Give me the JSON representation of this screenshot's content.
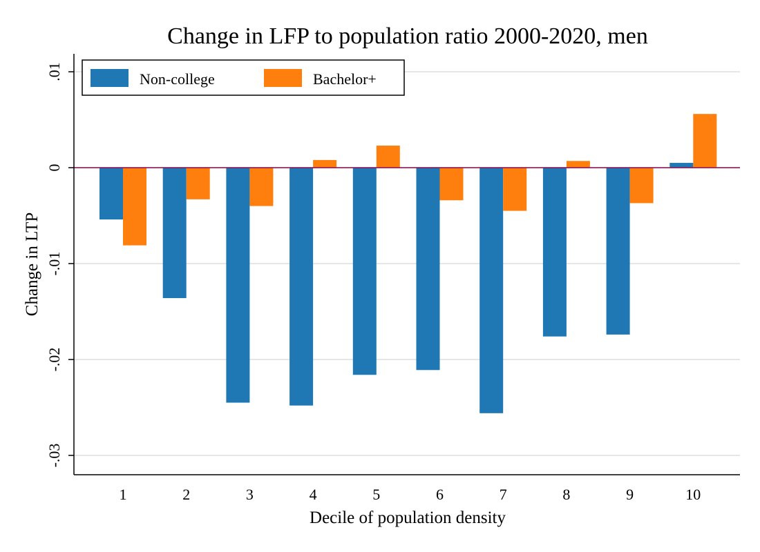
{
  "chart_data": {
    "type": "bar",
    "title": "Change in LFP to population ratio 2000-2020, men",
    "xlabel": "Decile of population density",
    "ylabel": "Change in LTP",
    "categories": [
      "1",
      "2",
      "3",
      "4",
      "5",
      "6",
      "7",
      "8",
      "9",
      "10"
    ],
    "series": [
      {
        "name": "Non-college",
        "color": "#1f77b4",
        "values": [
          -0.0054,
          -0.0136,
          -0.0245,
          -0.0248,
          -0.0216,
          -0.0211,
          -0.0256,
          -0.0176,
          -0.0174,
          0.0005
        ]
      },
      {
        "name": "Bachelor+",
        "color": "#ff7f0e",
        "values": [
          -0.0081,
          -0.0033,
          -0.004,
          0.0008,
          0.0023,
          -0.0034,
          -0.0045,
          0.0007,
          -0.0037,
          0.0056
        ]
      }
    ],
    "ylim": [
      -0.032,
      0.012
    ],
    "yticks": [
      {
        "value": 0.01,
        "label": ".01"
      },
      {
        "value": 0,
        "label": "0"
      },
      {
        "value": -0.01,
        "label": "-.01"
      },
      {
        "value": -0.02,
        "label": "-.02"
      },
      {
        "value": -0.03,
        "label": "-.03"
      }
    ],
    "grid": true,
    "zero_line_color": "#8b0a50",
    "legend_position": "top-left"
  }
}
